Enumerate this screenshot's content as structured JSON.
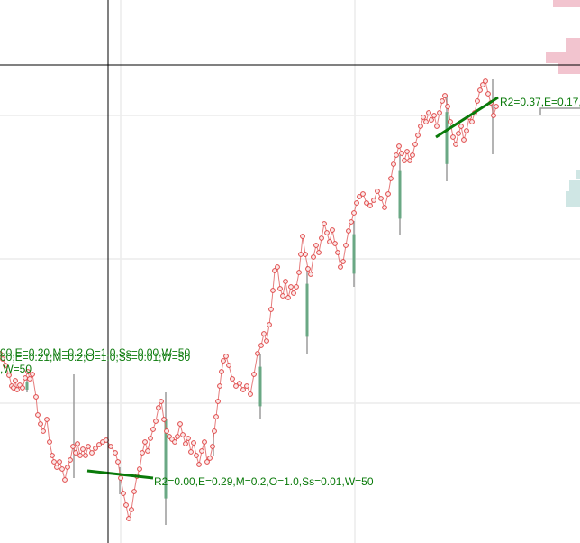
{
  "chart_data": {
    "type": "line",
    "grid": true,
    "colors": {
      "series": "#e06666",
      "marker_edge": "#e04848",
      "trend": "#0a7a0a",
      "annotation": "#0a7a0a",
      "bar_up": "#6aa884",
      "bar_wick": "#9a9a9a",
      "crosshair": "#000000",
      "pink_block": "#f2c4cf",
      "teal_block": "#cfe6e4"
    },
    "series": [
      {
        "values": [
          [
            0,
            392
          ],
          [
            3,
            398
          ],
          [
            6,
            405
          ],
          [
            10,
            416
          ],
          [
            13,
            428
          ],
          [
            15,
            430
          ],
          [
            17,
            422
          ],
          [
            19,
            432
          ],
          [
            22,
            427
          ],
          [
            25,
            430
          ],
          [
            28,
            419
          ],
          [
            31,
            412
          ],
          [
            33,
            420
          ],
          [
            36,
            415
          ],
          [
            40,
            440
          ],
          [
            42,
            460
          ],
          [
            45,
            470
          ],
          [
            48,
            478
          ],
          [
            52,
            465
          ],
          [
            55,
            490
          ],
          [
            58,
            505
          ],
          [
            60,
            512
          ],
          [
            63,
            518
          ],
          [
            66,
            512
          ],
          [
            69,
            520
          ],
          [
            72,
            532
          ],
          [
            75,
            518
          ],
          [
            78,
            510
          ],
          [
            81,
            495
          ],
          [
            84,
            502
          ],
          [
            86,
            492
          ],
          [
            89,
            505
          ],
          [
            92,
            498
          ],
          [
            95,
            505
          ],
          [
            98,
            495
          ],
          [
            102,
            502
          ],
          [
            106,
            497
          ],
          [
            110,
            493
          ],
          [
            114,
            490
          ],
          [
            118,
            488
          ],
          [
            123,
            495
          ],
          [
            128,
            502
          ],
          [
            131,
            512
          ],
          [
            134,
            530
          ],
          [
            137,
            547
          ],
          [
            140,
            560
          ],
          [
            143,
            575
          ],
          [
            146,
            565
          ],
          [
            149,
            545
          ],
          [
            152,
            528
          ],
          [
            155,
            520
          ],
          [
            158,
            502
          ],
          [
            161,
            490
          ],
          [
            164,
            500
          ],
          [
            167,
            486
          ],
          [
            170,
            476
          ],
          [
            173,
            467
          ],
          [
            176,
            452
          ],
          [
            179,
            445
          ],
          [
            182,
            465
          ],
          [
            185,
            478
          ],
          [
            188,
            484
          ],
          [
            191,
            487
          ],
          [
            194,
            490
          ],
          [
            197,
            484
          ],
          [
            200,
            470
          ],
          [
            203,
            482
          ],
          [
            206,
            492
          ],
          [
            209,
            486
          ],
          [
            212,
            501
          ],
          [
            215,
            491
          ],
          [
            218,
            505
          ],
          [
            221,
            515
          ],
          [
            224,
            500
          ],
          [
            227,
            490
          ],
          [
            230,
            512
          ],
          [
            233,
            508
          ],
          [
            236,
            495
          ],
          [
            238,
            478
          ],
          [
            240,
            462
          ],
          [
            242,
            445
          ],
          [
            244,
            428
          ],
          [
            246,
            412
          ],
          [
            248,
            400
          ],
          [
            251,
            395
          ],
          [
            254,
            405
          ],
          [
            258,
            420
          ],
          [
            262,
            428
          ],
          [
            266,
            425
          ],
          [
            270,
            432
          ],
          [
            274,
            428
          ],
          [
            278,
            437
          ],
          [
            282,
            415
          ],
          [
            286,
            392
          ],
          [
            290,
            383
          ],
          [
            293,
            370
          ],
          [
            296,
            378
          ],
          [
            299,
            360
          ],
          [
            301,
            343
          ],
          [
            303,
            322
          ],
          [
            305,
            300
          ],
          [
            308,
            296
          ],
          [
            311,
            320
          ],
          [
            314,
            328
          ],
          [
            317,
            312
          ],
          [
            320,
            330
          ],
          [
            323,
            318
          ],
          [
            326,
            325
          ],
          [
            329,
            318
          ],
          [
            332,
            302
          ],
          [
            334,
            282
          ],
          [
            336,
            262
          ],
          [
            339,
            282
          ],
          [
            342,
            298
          ],
          [
            345,
            304
          ],
          [
            348,
            285
          ],
          [
            351,
            272
          ],
          [
            354,
            280
          ],
          [
            357,
            264
          ],
          [
            360,
            248
          ],
          [
            363,
            258
          ],
          [
            366,
            268
          ],
          [
            369,
            255
          ],
          [
            372,
            270
          ],
          [
            375,
            280
          ],
          [
            378,
            296
          ],
          [
            381,
            290
          ],
          [
            384,
            272
          ],
          [
            387,
            256
          ],
          [
            390,
            246
          ],
          [
            393,
            236
          ],
          [
            396,
            225
          ],
          [
            399,
            218
          ],
          [
            403,
            215
          ],
          [
            407,
            225
          ],
          [
            411,
            228
          ],
          [
            415,
            222
          ],
          [
            419,
            212
          ],
          [
            423,
            220
          ],
          [
            427,
            230
          ],
          [
            431,
            215
          ],
          [
            434,
            198
          ],
          [
            437,
            182
          ],
          [
            440,
            172
          ],
          [
            443,
            162
          ],
          [
            446,
            170
          ],
          [
            449,
            178
          ],
          [
            452,
            168
          ],
          [
            455,
            178
          ],
          [
            458,
            172
          ],
          [
            461,
            160
          ],
          [
            464,
            150
          ],
          [
            467,
            140
          ],
          [
            470,
            130
          ],
          [
            473,
            135
          ],
          [
            476,
            125
          ],
          [
            479,
            133
          ],
          [
            482,
            128
          ],
          [
            485,
            140
          ],
          [
            488,
            125
          ],
          [
            491,
            112
          ],
          [
            494,
            106
          ],
          [
            497,
            118
          ],
          [
            500,
            135
          ],
          [
            503,
            152
          ],
          [
            506,
            160
          ],
          [
            509,
            148
          ],
          [
            512,
            140
          ],
          [
            515,
            155
          ],
          [
            518,
            145
          ],
          [
            521,
            130
          ],
          [
            524,
            135
          ],
          [
            527,
            125
          ],
          [
            530,
            112
          ],
          [
            533,
            100
          ],
          [
            536,
            94
          ],
          [
            539,
            90
          ],
          [
            542,
            104
          ],
          [
            545,
            114
          ],
          [
            548,
            128
          ],
          [
            551,
            118
          ]
        ]
      }
    ],
    "trend_lines": [
      {
        "points": [
          [
            97,
            522
          ],
          [
            170,
            530
          ]
        ]
      },
      {
        "points": [
          [
            484,
            152
          ],
          [
            553,
            108
          ]
        ]
      }
    ],
    "range_bars": [
      {
        "x": 30,
        "y0": 420,
        "y1": 435,
        "up": true
      },
      {
        "x": 82,
        "y0": 415,
        "y1": 530,
        "up": false
      },
      {
        "x": 133,
        "y0": 518,
        "y1": 548,
        "up": false
      },
      {
        "x": 184,
        "y0": 435,
        "y1": 582,
        "up": true
      },
      {
        "x": 237,
        "y0": 476,
        "y1": 506,
        "up": false
      },
      {
        "x": 289,
        "y0": 392,
        "y1": 465,
        "up": true
      },
      {
        "x": 341,
        "y0": 295,
        "y1": 393,
        "up": true
      },
      {
        "x": 393,
        "y0": 245,
        "y1": 318,
        "up": true
      },
      {
        "x": 444,
        "y0": 172,
        "y1": 260,
        "up": true
      },
      {
        "x": 496,
        "y0": 105,
        "y1": 201,
        "up": true
      },
      {
        "x": 547,
        "y0": 88,
        "y1": 171,
        "up": false
      }
    ],
    "annotations": [
      {
        "text": "R2=0.00,E=0.29,M=0.2,O=1.0,Ss=0.01,W=50"
      },
      {
        "text": "R2=0.37,E=0.17,"
      },
      {
        "text": "00,E=0.20,M=0.2,O=1.0,Ss=0.00,W=50"
      },
      {
        "text": "00,E=0.21,M=0.2,O=1.0,Ss=0.01,W=50"
      },
      {
        "text": ",W=50"
      }
    ]
  }
}
